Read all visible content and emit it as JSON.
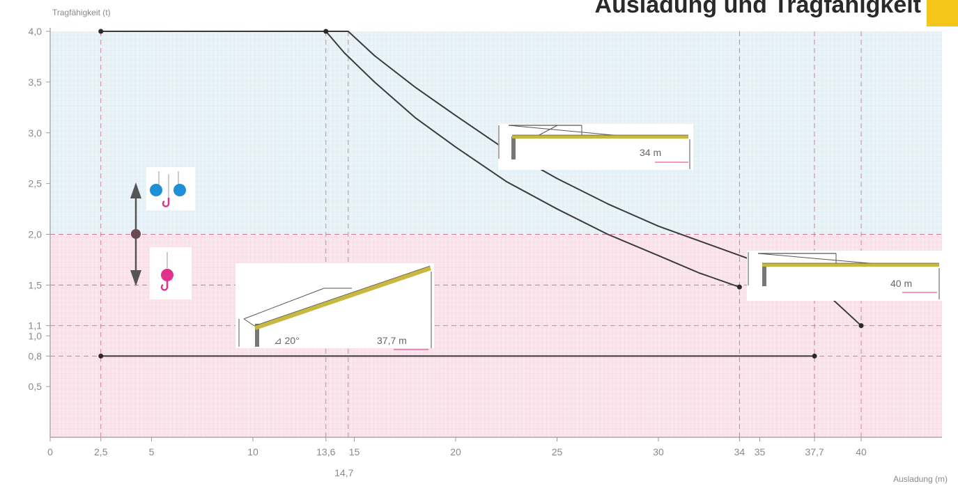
{
  "title": "Ausladung und Tragfähigkeit",
  "colors": {
    "accent": "#f5c518",
    "upper_band": "#e9f3f8",
    "lower_band": "#fbe6ee",
    "curve": "#3a3a3a",
    "guide": "#c0506a",
    "tick_text": "#8a8a8a",
    "cyan_weight": "#1e8fd6",
    "magenta_weight": "#e0328a",
    "arrow": "#555555"
  },
  "icons": {
    "double_load": "two-weights-hook-icon",
    "single_load": "single-weight-hook-icon",
    "arrows": "up-down-arrow-icon",
    "crane_34": "crane-jib-34m-icon",
    "crane_40": "crane-jib-40m-icon",
    "crane_luffed": "crane-jib-20deg-icon"
  },
  "insets": {
    "crane_34_label": "34 m",
    "crane_40_label": "40 m",
    "crane_luffed_angle": "⊿ 20°",
    "crane_luffed_label": "37,7 m"
  },
  "chart_data": {
    "type": "line",
    "title": "Ausladung und Tragfähigkeit",
    "xlabel": "Ausladung (m)",
    "ylabel": "Tragfähigkeit (t)",
    "xlim": [
      0,
      44
    ],
    "ylim": [
      0,
      4.0
    ],
    "grid": true,
    "x_ticks": [
      {
        "value": 0,
        "label": "0"
      },
      {
        "value": 2.5,
        "label": "2,5"
      },
      {
        "value": 5,
        "label": "5"
      },
      {
        "value": 10,
        "label": "10"
      },
      {
        "value": 13.6,
        "label": "13,6"
      },
      {
        "value": 15,
        "label": "15"
      },
      {
        "value": 20,
        "label": "20"
      },
      {
        "value": 25,
        "label": "25"
      },
      {
        "value": 30,
        "label": "30"
      },
      {
        "value": 34,
        "label": "34"
      },
      {
        "value": 35,
        "label": "35"
      },
      {
        "value": 37.7,
        "label": "37,7"
      },
      {
        "value": 40,
        "label": "40"
      }
    ],
    "x_ticks_lower": [
      {
        "value": 14.7,
        "label": "14,7"
      }
    ],
    "y_ticks": [
      {
        "value": 4.0,
        "label": "4,0"
      },
      {
        "value": 3.5,
        "label": "3,5"
      },
      {
        "value": 3.0,
        "label": "3,0"
      },
      {
        "value": 2.5,
        "label": "2,5"
      },
      {
        "value": 2.0,
        "label": "2,0"
      },
      {
        "value": 1.5,
        "label": "1,5"
      },
      {
        "value": 1.1,
        "label": "1,1"
      },
      {
        "value": 1.0,
        "label": "1,0"
      },
      {
        "value": 0.8,
        "label": "0,8"
      },
      {
        "value": 0.5,
        "label": "0,5"
      }
    ],
    "series": [
      {
        "points": [
          [
            2.5,
            4.0
          ],
          [
            13.6,
            4.0
          ],
          [
            14.5,
            3.79
          ],
          [
            16,
            3.5
          ],
          [
            18,
            3.15
          ],
          [
            20,
            2.86
          ],
          [
            22.5,
            2.52
          ],
          [
            25,
            2.25
          ],
          [
            27.5,
            2.0
          ],
          [
            30,
            1.79
          ],
          [
            32,
            1.62
          ],
          [
            34,
            1.48
          ]
        ]
      },
      {
        "points": [
          [
            13.6,
            4.0
          ],
          [
            14.7,
            4.0
          ],
          [
            16,
            3.76
          ],
          [
            18,
            3.45
          ],
          [
            20,
            3.17
          ],
          [
            22.5,
            2.83
          ],
          [
            25,
            2.55
          ],
          [
            27.5,
            2.3
          ],
          [
            30,
            2.08
          ],
          [
            32.5,
            1.9
          ],
          [
            35,
            1.72
          ],
          [
            37.5,
            1.56
          ],
          [
            40,
            1.1
          ]
        ]
      },
      {
        "points": [
          [
            2.5,
            0.8
          ],
          [
            37.7,
            0.8
          ]
        ]
      }
    ],
    "reference_lines": {
      "vertical": [
        2.5,
        13.6,
        14.7,
        34,
        37.7,
        40
      ],
      "horizontal": [
        2.0,
        1.5,
        1.1,
        0.8
      ]
    }
  }
}
